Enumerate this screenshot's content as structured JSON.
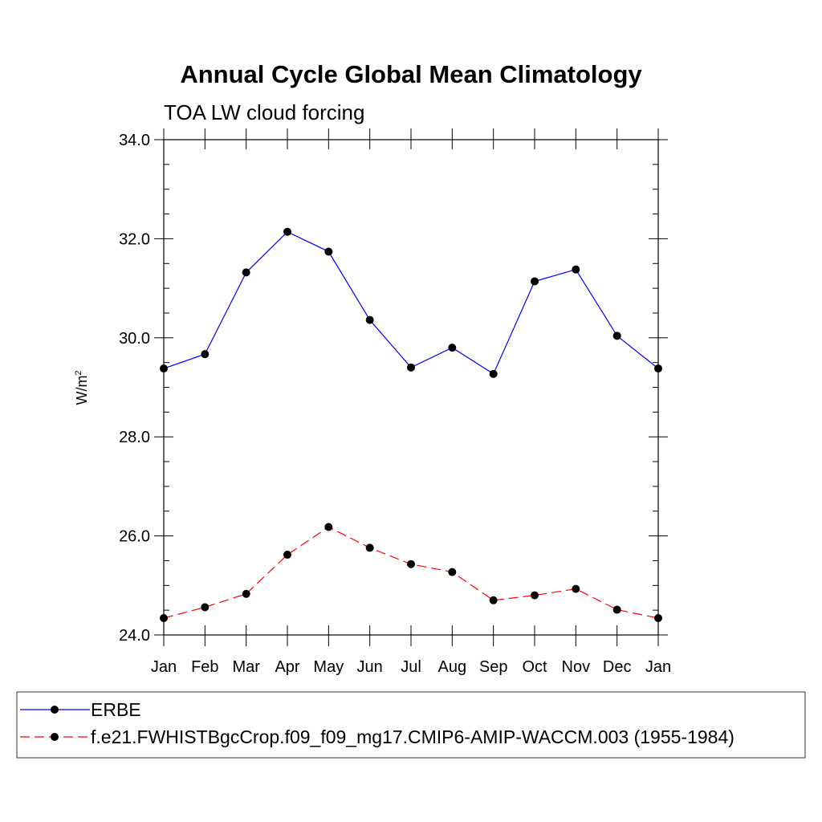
{
  "chart_data": {
    "type": "line",
    "title": "Annual Cycle Global Mean Climatology",
    "subtitle": "TOA LW cloud forcing",
    "ylabel": "W/m",
    "ylabel_sup": "2",
    "ylim": [
      24.0,
      34.0
    ],
    "yticks": [
      "24.0",
      "26.0",
      "28.0",
      "30.0",
      "32.0",
      "34.0"
    ],
    "categories": [
      "Jan",
      "Feb",
      "Mar",
      "Apr",
      "May",
      "Jun",
      "Jul",
      "Aug",
      "Sep",
      "Oct",
      "Nov",
      "Dec",
      "Jan"
    ],
    "grid": false,
    "legend_position": "bottom",
    "series": [
      {
        "name": "ERBE",
        "color": "#0000ff",
        "dash": "solid",
        "marker": "filled-circle",
        "values": [
          29.38,
          29.67,
          31.32,
          32.14,
          31.74,
          30.36,
          29.4,
          29.8,
          29.27,
          31.14,
          31.38,
          30.04,
          29.38
        ]
      },
      {
        "name": "f.e21.FWHISTBgcCrop.f09_f09_mg17.CMIP6-AMIP-WACCM.003 (1955-1984)",
        "color": "#ff0000",
        "dash": "dashed",
        "marker": "filled-circle",
        "values": [
          24.34,
          24.56,
          24.83,
          25.62,
          26.18,
          25.76,
          25.43,
          25.27,
          24.7,
          24.8,
          24.93,
          24.51,
          24.34
        ]
      }
    ]
  }
}
